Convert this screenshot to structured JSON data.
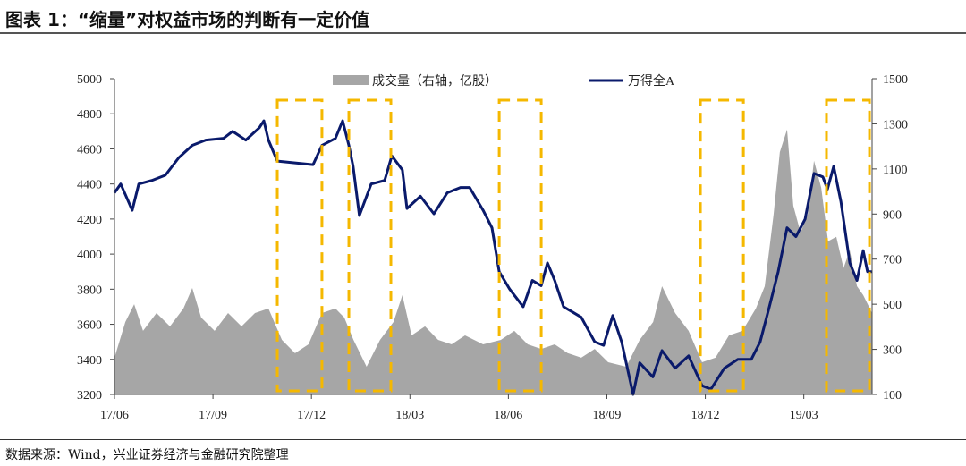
{
  "title": "图表 1：“缩量”对权益市场的判断有一定价值",
  "source": "数据来源：Wind，兴业证券经济与金融研究院整理",
  "chart_data": {
    "type": "line+area",
    "x_unit": "months since 2017-06",
    "xlim": [
      0,
      23.08
    ],
    "xticks": [
      {
        "x": 0,
        "label": "17/06"
      },
      {
        "x": 3,
        "label": "17/09"
      },
      {
        "x": 6,
        "label": "17/12"
      },
      {
        "x": 9,
        "label": "18/03"
      },
      {
        "x": 12,
        "label": "18/06"
      },
      {
        "x": 15,
        "label": "18/09"
      },
      {
        "x": 18,
        "label": "18/12"
      },
      {
        "x": 21,
        "label": "19/03"
      }
    ],
    "y_left": {
      "lim": [
        3200,
        5000
      ],
      "ticks": [
        3200,
        3400,
        3600,
        3800,
        4000,
        4200,
        4400,
        4600,
        4800,
        5000
      ]
    },
    "y_right": {
      "lim": [
        100,
        1500
      ],
      "ticks": [
        100,
        300,
        500,
        700,
        900,
        1100,
        1300,
        1500
      ]
    },
    "legend": {
      "placement": "top-center",
      "items": [
        "成交量（右轴，亿股）",
        "万得全A"
      ]
    },
    "colors": {
      "volume": "#a6a6a6",
      "index": "#0a1a6b",
      "highlight": "#f5b800"
    },
    "series": [
      {
        "name": "万得全A",
        "axis": "left",
        "type": "line",
        "points": [
          [
            0,
            4350
          ],
          [
            0.19,
            4400
          ],
          [
            0.54,
            4250
          ],
          [
            0.74,
            4400
          ],
          [
            1.14,
            4420
          ],
          [
            1.55,
            4450
          ],
          [
            1.96,
            4550
          ],
          [
            2.37,
            4620
          ],
          [
            2.78,
            4650
          ],
          [
            3.32,
            4660
          ],
          [
            3.6,
            4700
          ],
          [
            4.0,
            4650
          ],
          [
            4.41,
            4720
          ],
          [
            4.55,
            4760
          ],
          [
            4.69,
            4650
          ],
          [
            4.96,
            4530
          ],
          [
            5.5,
            4520
          ],
          [
            6.05,
            4510
          ],
          [
            6.32,
            4620
          ],
          [
            6.73,
            4660
          ],
          [
            6.95,
            4760
          ],
          [
            7.14,
            4620
          ],
          [
            7.27,
            4500
          ],
          [
            7.46,
            4220
          ],
          [
            7.82,
            4400
          ],
          [
            8.23,
            4420
          ],
          [
            8.45,
            4560
          ],
          [
            8.77,
            4480
          ],
          [
            8.91,
            4260
          ],
          [
            9.32,
            4330
          ],
          [
            9.73,
            4230
          ],
          [
            10.14,
            4350
          ],
          [
            10.54,
            4380
          ],
          [
            10.82,
            4380
          ],
          [
            11.23,
            4250
          ],
          [
            11.5,
            4150
          ],
          [
            11.72,
            3900
          ],
          [
            12.04,
            3800
          ],
          [
            12.45,
            3700
          ],
          [
            12.73,
            3850
          ],
          [
            13.0,
            3820
          ],
          [
            13.19,
            3950
          ],
          [
            13.41,
            3850
          ],
          [
            13.68,
            3700
          ],
          [
            14.22,
            3640
          ],
          [
            14.63,
            3500
          ],
          [
            14.9,
            3480
          ],
          [
            15.18,
            3650
          ],
          [
            15.45,
            3500
          ],
          [
            15.8,
            3200
          ],
          [
            16.0,
            3380
          ],
          [
            16.4,
            3300
          ],
          [
            16.68,
            3450
          ],
          [
            17.08,
            3350
          ],
          [
            17.49,
            3420
          ],
          [
            17.9,
            3250
          ],
          [
            18.17,
            3230
          ],
          [
            18.58,
            3350
          ],
          [
            18.99,
            3400
          ],
          [
            19.4,
            3400
          ],
          [
            19.67,
            3500
          ],
          [
            19.95,
            3700
          ],
          [
            20.22,
            3900
          ],
          [
            20.49,
            4150
          ],
          [
            20.76,
            4100
          ],
          [
            21.04,
            4200
          ],
          [
            21.31,
            4460
          ],
          [
            21.58,
            4440
          ],
          [
            21.72,
            4370
          ],
          [
            21.91,
            4500
          ],
          [
            22.13,
            4300
          ],
          [
            22.4,
            3950
          ],
          [
            22.62,
            3850
          ],
          [
            22.81,
            4020
          ],
          [
            22.94,
            3900
          ],
          [
            23.08,
            3900
          ]
        ]
      },
      {
        "name": "成交量（右轴，亿股）",
        "axis": "right",
        "type": "area",
        "points": [
          [
            0,
            263
          ],
          [
            0.33,
            421
          ],
          [
            0.6,
            500
          ],
          [
            0.87,
            382
          ],
          [
            1.28,
            461
          ],
          [
            1.69,
            402
          ],
          [
            2.1,
            481
          ],
          [
            2.37,
            572
          ],
          [
            2.64,
            441
          ],
          [
            3.05,
            382
          ],
          [
            3.46,
            461
          ],
          [
            3.87,
            402
          ],
          [
            4.28,
            461
          ],
          [
            4.69,
            481
          ],
          [
            5.1,
            342
          ],
          [
            5.5,
            283
          ],
          [
            5.91,
            322
          ],
          [
            6.32,
            461
          ],
          [
            6.73,
            481
          ],
          [
            7.0,
            441
          ],
          [
            7.28,
            342
          ],
          [
            7.68,
            223
          ],
          [
            8.09,
            342
          ],
          [
            8.5,
            421
          ],
          [
            8.77,
            540
          ],
          [
            9.05,
            362
          ],
          [
            9.46,
            402
          ],
          [
            9.86,
            342
          ],
          [
            10.27,
            322
          ],
          [
            10.68,
            362
          ],
          [
            11.23,
            322
          ],
          [
            11.77,
            342
          ],
          [
            12.18,
            382
          ],
          [
            12.59,
            322
          ],
          [
            13.0,
            302
          ],
          [
            13.41,
            322
          ],
          [
            13.81,
            283
          ],
          [
            14.22,
            263
          ],
          [
            14.63,
            302
          ],
          [
            15.04,
            243
          ],
          [
            15.59,
            223
          ],
          [
            16.0,
            342
          ],
          [
            16.41,
            421
          ],
          [
            16.68,
            580
          ],
          [
            17.08,
            461
          ],
          [
            17.49,
            382
          ],
          [
            17.9,
            243
          ],
          [
            18.31,
            263
          ],
          [
            18.72,
            362
          ],
          [
            19.13,
            382
          ],
          [
            19.54,
            481
          ],
          [
            19.81,
            580
          ],
          [
            20.08,
            898
          ],
          [
            20.27,
            1175
          ],
          [
            20.49,
            1275
          ],
          [
            20.68,
            937
          ],
          [
            20.9,
            818
          ],
          [
            21.12,
            898
          ],
          [
            21.31,
            1136
          ],
          [
            21.53,
            1017
          ],
          [
            21.74,
            779
          ],
          [
            21.99,
            799
          ],
          [
            22.21,
            660
          ],
          [
            22.4,
            739
          ],
          [
            22.62,
            580
          ],
          [
            22.81,
            540
          ],
          [
            23.08,
            461
          ]
        ]
      }
    ],
    "highlight_periods": [
      [
        4.96,
        6.32
      ],
      [
        7.14,
        8.42
      ],
      [
        11.72,
        13.0
      ],
      [
        17.85,
        19.16
      ],
      [
        21.69,
        23.0
      ]
    ]
  }
}
